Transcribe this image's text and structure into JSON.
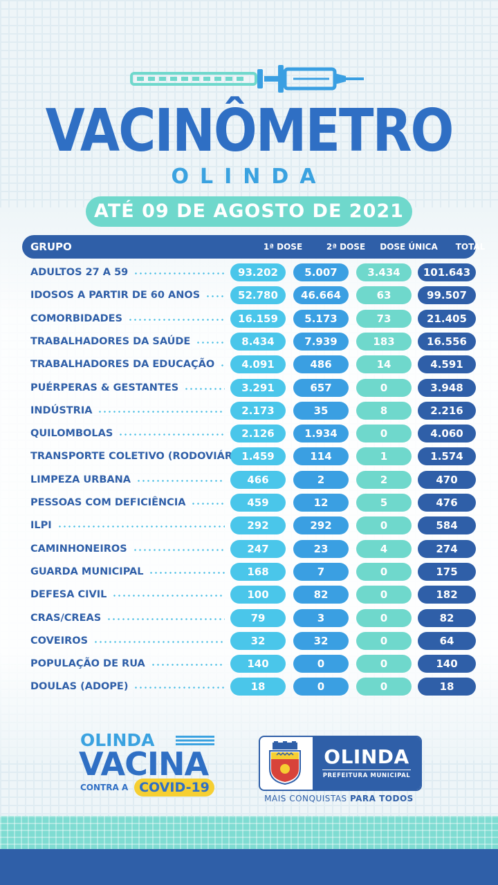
{
  "header": {
    "title": "VACINÔMETRO",
    "subtitle": "OLINDA",
    "date": "ATÉ 09 DE  AGOSTO DE 2021"
  },
  "table": {
    "columns": [
      "GRUPO",
      "1ª DOSE",
      "2ª DOSE",
      "DOSE ÚNICA",
      "TOTAL"
    ],
    "rows": [
      {
        "group": "ADULTOS 27 A 59",
        "d1": "93.202",
        "d2": "5.007",
        "du": "3.434",
        "total": "101.643"
      },
      {
        "group": "IDOSOS A PARTIR DE 60 ANOS",
        "d1": "52.780",
        "d2": "46.664",
        "du": "63",
        "total": "99.507"
      },
      {
        "group": "COMORBIDADES",
        "d1": "16.159",
        "d2": "5.173",
        "du": "73",
        "total": "21.405"
      },
      {
        "group": "TRABALHADORES DA SAÚDE",
        "d1": "8.434",
        "d2": "7.939",
        "du": "183",
        "total": "16.556"
      },
      {
        "group": "TRABALHADORES DA EDUCAÇÃO",
        "d1": "4.091",
        "d2": "486",
        "du": "14",
        "total": "4.591"
      },
      {
        "group": "PUÉRPERAS & GESTANTES",
        "d1": "3.291",
        "d2": "657",
        "du": "0",
        "total": "3.948"
      },
      {
        "group": "INDÚSTRIA",
        "d1": "2.173",
        "d2": "35",
        "du": "8",
        "total": "2.216"
      },
      {
        "group": "QUILOMBOLAS",
        "d1": "2.126",
        "d2": "1.934",
        "du": "0",
        "total": "4.060"
      },
      {
        "group": "TRANSPORTE COLETIVO (RODOVIÁRIOS)",
        "d1": "1.459",
        "d2": "114",
        "du": "1",
        "total": "1.574"
      },
      {
        "group": "LIMPEZA URBANA",
        "d1": "466",
        "d2": "2",
        "du": "2",
        "total": "470"
      },
      {
        "group": "PESSOAS COM DEFICIÊNCIA",
        "d1": "459",
        "d2": "12",
        "du": "5",
        "total": "476"
      },
      {
        "group": "ILPI",
        "d1": "292",
        "d2": "292",
        "du": "0",
        "total": "584"
      },
      {
        "group": "CAMINHONEIROS",
        "d1": "247",
        "d2": "23",
        "du": "4",
        "total": "274"
      },
      {
        "group": "GUARDA MUNICIPAL",
        "d1": "168",
        "d2": "7",
        "du": "0",
        "total": "175"
      },
      {
        "group": "DEFESA CIVIL",
        "d1": "100",
        "d2": "82",
        "du": "0",
        "total": "182"
      },
      {
        "group": "CRAS/CREAS",
        "d1": "79",
        "d2": "3",
        "du": "0",
        "total": "82"
      },
      {
        "group": "COVEIROS",
        "d1": "32",
        "d2": "32",
        "du": "0",
        "total": "64"
      },
      {
        "group": "POPULAÇÃO DE RUA",
        "d1": "140",
        "d2": "0",
        "du": "0",
        "total": "140"
      },
      {
        "group": "DOULAS (ADOPE)",
        "d1": "18",
        "d2": "0",
        "du": "0",
        "total": "18"
      }
    ]
  },
  "campaign_logo": {
    "line1": "OLINDA",
    "line2": "VACINA",
    "line3": "CONTRA A",
    "badge": "COVID-19"
  },
  "prefeitura_logo": {
    "name": "OLINDA",
    "subtitle": "PREFEITURA MUNICIPAL",
    "slogan_regular": "MAIS CONQUISTAS ",
    "slogan_bold": "PARA TODOS"
  },
  "colors": {
    "dark_blue": "#2f5fa8",
    "blue": "#3a9fe2",
    "light_blue": "#4ac6ea",
    "teal": "#6fd8cc",
    "yellow": "#f6cf32"
  }
}
